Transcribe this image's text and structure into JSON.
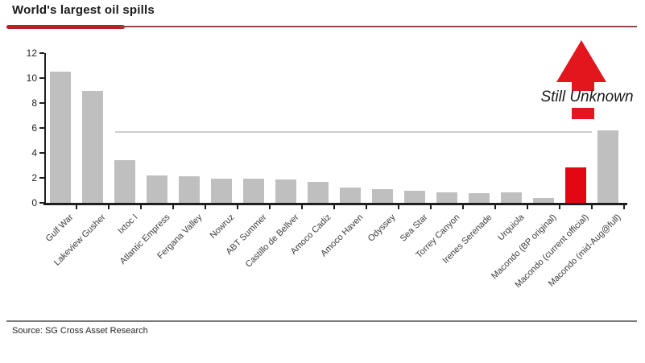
{
  "header": {
    "title": "World's largest oil spills"
  },
  "footer": {
    "source": "Source: SG Cross Asset Research"
  },
  "annotation": {
    "label": "Still Unknown"
  },
  "colors": {
    "bar_default": "#bfbfbf",
    "bar_highlight": "#e30613",
    "arrow_red": "#e2161c",
    "underline_thick": "#b32427",
    "underline_thin": "#9a4548",
    "reference_line": "#cdcdcd",
    "axis": "#1f1f1f"
  },
  "chart_data": {
    "type": "bar",
    "title": "World's largest oil spills",
    "xlabel": "",
    "ylabel": "",
    "ylim": [
      0,
      12
    ],
    "yticks": [
      0,
      2,
      4,
      6,
      8,
      10,
      12
    ],
    "grid": false,
    "legend": false,
    "categories": [
      "Gulf War",
      "Lakeview Gusher",
      "Ixtoc I",
      "Atlantic Empress",
      "Fergana Valley",
      "Nowruz",
      "ABT Summer",
      "Castillo de Bellver",
      "Amoco Cadiz",
      "Amoco Haven",
      "Odyssey",
      "Sea Star",
      "Torrey Canyon",
      "Irenes Serenade",
      "Urquiola",
      "Macondo (BP original)",
      "Macondo (current official)",
      "Macondo (mid-Aug@full)"
    ],
    "values": [
      10.5,
      9.0,
      3.4,
      2.2,
      2.1,
      1.95,
      1.95,
      1.9,
      1.7,
      1.25,
      1.1,
      1.0,
      0.85,
      0.8,
      0.85,
      0.4,
      2.85,
      5.8
    ],
    "highlight": {
      "index": 16,
      "category": "Macondo (current official)",
      "color": "#e30613"
    },
    "reference_line": {
      "value": 5.7
    },
    "annotation": {
      "label": "Still Unknown",
      "target_category": "Macondo (mid-Aug@full)"
    }
  }
}
